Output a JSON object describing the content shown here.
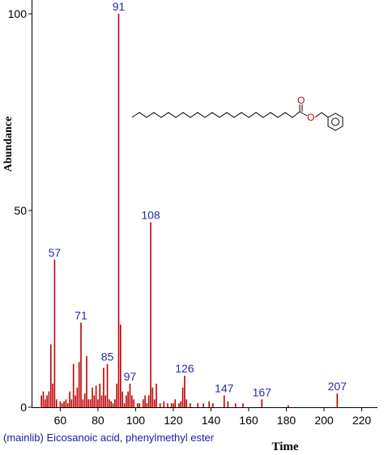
{
  "colors": {
    "peak": "#c00000",
    "label": "#2a2aa8",
    "axis": "#000000",
    "oxygen": "#d00000",
    "caption": "#1a1aa0"
  },
  "caption": "(mainlib) Eicosanoic acid, phenylmethyl ester",
  "molecule": {
    "oxygen_symbol": "O"
  },
  "chart_data": {
    "type": "bar",
    "title": "",
    "xlabel": "Time",
    "ylabel": "Abundance",
    "xlim": [
      45,
      222
    ],
    "ylim": [
      0,
      100
    ],
    "xticks": [
      60,
      80,
      100,
      120,
      140,
      160,
      180,
      200,
      220
    ],
    "yticks": [
      0,
      50,
      100
    ],
    "grid": false,
    "labeled_peaks": [
      {
        "label": "57",
        "x": 57,
        "y": 37.5
      },
      {
        "label": "71",
        "x": 71,
        "y": 21.5
      },
      {
        "label": "85",
        "x": 85,
        "y": 11
      },
      {
        "label": "91",
        "x": 91,
        "y": 100
      },
      {
        "label": "97",
        "x": 97,
        "y": 6
      },
      {
        "label": "108",
        "x": 108,
        "y": 47
      },
      {
        "label": "126",
        "x": 126,
        "y": 8
      },
      {
        "label": "147",
        "x": 147,
        "y": 3
      },
      {
        "label": "167",
        "x": 167,
        "y": 2
      },
      {
        "label": "207",
        "x": 207,
        "y": 3.5
      }
    ],
    "peaks": [
      [
        50,
        3
      ],
      [
        51,
        4
      ],
      [
        52,
        2
      ],
      [
        53,
        3
      ],
      [
        54,
        4
      ],
      [
        55,
        16
      ],
      [
        56,
        6
      ],
      [
        57,
        37.5
      ],
      [
        58,
        2
      ],
      [
        60,
        1.5
      ],
      [
        61,
        1
      ],
      [
        62,
        1.5
      ],
      [
        63,
        2
      ],
      [
        64,
        1
      ],
      [
        65,
        4
      ],
      [
        66,
        2
      ],
      [
        67,
        11
      ],
      [
        68,
        3
      ],
      [
        69,
        5
      ],
      [
        70,
        11.5
      ],
      [
        71,
        21.5
      ],
      [
        72,
        2
      ],
      [
        73,
        3.5
      ],
      [
        74,
        13
      ],
      [
        75,
        2
      ],
      [
        76,
        2
      ],
      [
        77,
        5
      ],
      [
        78,
        3
      ],
      [
        79,
        5.5
      ],
      [
        80,
        2
      ],
      [
        81,
        6
      ],
      [
        82,
        3
      ],
      [
        83,
        10
      ],
      [
        84,
        3
      ],
      [
        85,
        11
      ],
      [
        86,
        2
      ],
      [
        87,
        1.5
      ],
      [
        88,
        1
      ],
      [
        89,
        2
      ],
      [
        90,
        6
      ],
      [
        91,
        100
      ],
      [
        92,
        21
      ],
      [
        93,
        4
      ],
      [
        94,
        1
      ],
      [
        95,
        3
      ],
      [
        96,
        4
      ],
      [
        97,
        6
      ],
      [
        98,
        3
      ],
      [
        99,
        2
      ],
      [
        101,
        1
      ],
      [
        102,
        1
      ],
      [
        104,
        2
      ],
      [
        105,
        3
      ],
      [
        106,
        1
      ],
      [
        107,
        3
      ],
      [
        108,
        47
      ],
      [
        109,
        5
      ],
      [
        110,
        2
      ],
      [
        111,
        6
      ],
      [
        113,
        1
      ],
      [
        115,
        1.5
      ],
      [
        117,
        1
      ],
      [
        119,
        1
      ],
      [
        120,
        1
      ],
      [
        121,
        2
      ],
      [
        123,
        1
      ],
      [
        124,
        1.5
      ],
      [
        125,
        5
      ],
      [
        126,
        8
      ],
      [
        127,
        2
      ],
      [
        129,
        1
      ],
      [
        133,
        1
      ],
      [
        136,
        1
      ],
      [
        139,
        1.5
      ],
      [
        141,
        1
      ],
      [
        147,
        3
      ],
      [
        149,
        1.5
      ],
      [
        153,
        1
      ],
      [
        157,
        1
      ],
      [
        167,
        2
      ],
      [
        181,
        0.5
      ],
      [
        207,
        3.5
      ]
    ]
  }
}
